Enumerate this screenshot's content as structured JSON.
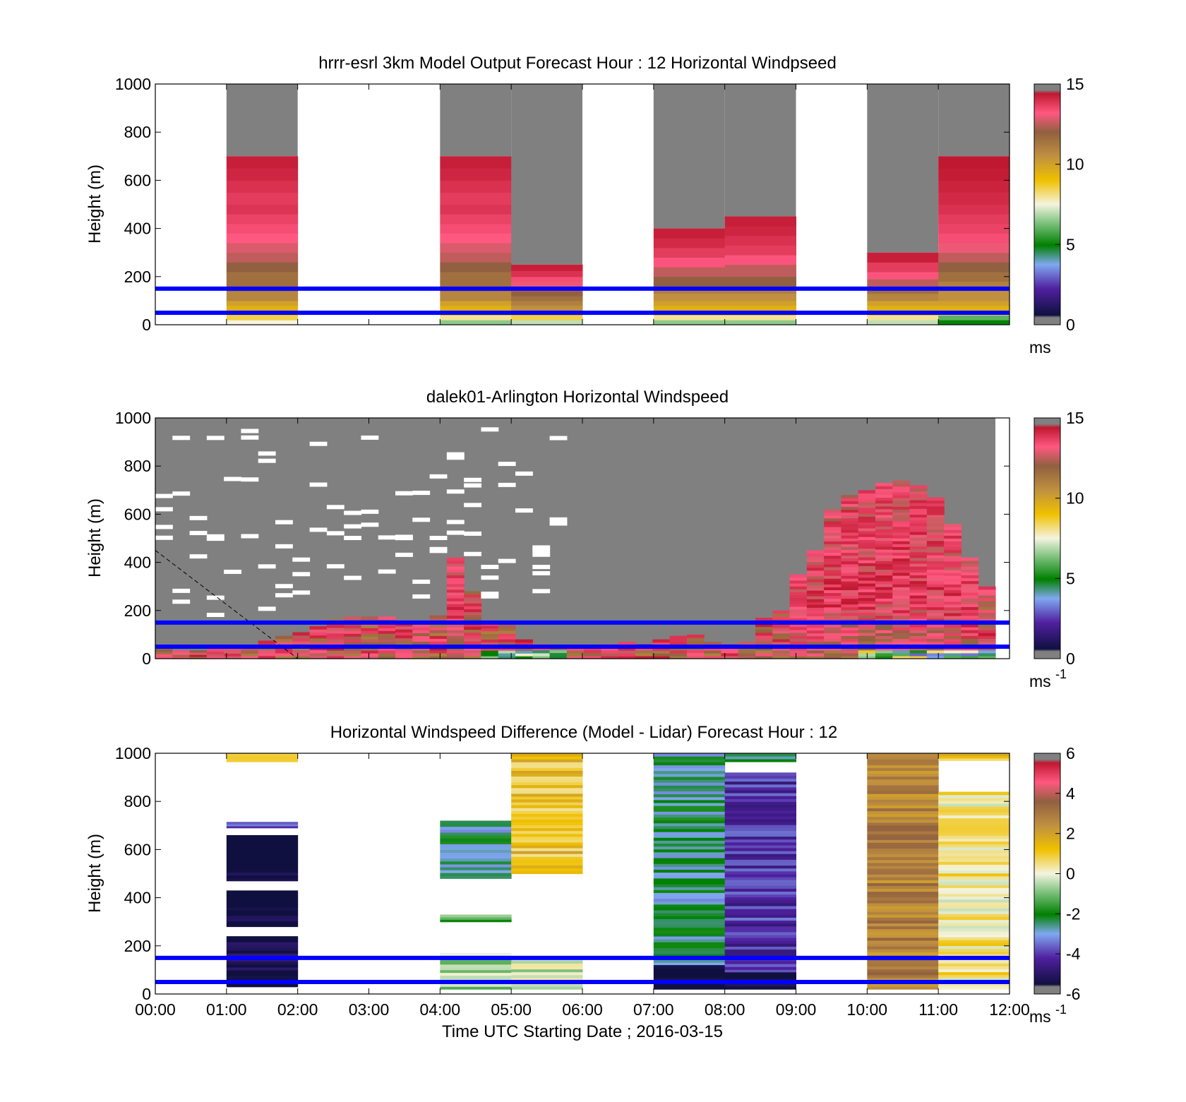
{
  "figure": {
    "xlabel": "Time UTC  Starting Date ; 2016-03-15"
  },
  "chart_data": [
    {
      "type": "heatmap",
      "title": "hrrr-esrl 3km Model Output   Forecast Hour : 12 Horizontal Windpseed",
      "ylabel": "Height (m)",
      "xlim": [
        "00:00",
        "12:00"
      ],
      "ylim": [
        0,
        1000
      ],
      "yticks": [
        0,
        200,
        400,
        600,
        800,
        1000
      ],
      "x_ticks_labeled": false,
      "colorbar": {
        "min": 0,
        "max": 15,
        "ticks": [
          0,
          5,
          10,
          15
        ],
        "unit_label": "ms",
        "unit_exponent": ""
      },
      "reference_lines_m": [
        50,
        150
      ],
      "columns": [
        {
          "t0": 1,
          "t1": 2,
          "top": 700,
          "values": [
            [
              0,
              20,
              7.5
            ],
            [
              20,
              40,
              8.5
            ],
            [
              40,
              60,
              9
            ],
            [
              60,
              80,
              9.5
            ],
            [
              80,
              100,
              10
            ],
            [
              100,
              140,
              10.8
            ],
            [
              140,
              180,
              11.5
            ],
            [
              180,
              220,
              11.5
            ],
            [
              220,
              260,
              12
            ],
            [
              260,
              300,
              12.5
            ],
            [
              300,
              340,
              12.8
            ],
            [
              340,
              380,
              13.2
            ],
            [
              380,
              420,
              13.5
            ],
            [
              420,
              460,
              13.8
            ],
            [
              460,
              500,
              14.2
            ],
            [
              500,
              550,
              14
            ],
            [
              550,
              600,
              14.3
            ],
            [
              600,
              650,
              14.6
            ],
            [
              650,
              700,
              14.8
            ]
          ]
        },
        {
          "t0": 4,
          "t1": 5,
          "top": 700,
          "values": [
            [
              0,
              20,
              6.5
            ],
            [
              20,
              40,
              8
            ],
            [
              40,
              60,
              9
            ],
            [
              60,
              80,
              9.5
            ],
            [
              80,
              100,
              10
            ],
            [
              100,
              140,
              10.8
            ],
            [
              140,
              180,
              11.5
            ],
            [
              180,
              220,
              11.5
            ],
            [
              220,
              260,
              12
            ],
            [
              260,
              300,
              12.5
            ],
            [
              300,
              340,
              12.8
            ],
            [
              340,
              380,
              13.2
            ],
            [
              380,
              420,
              13.5
            ],
            [
              420,
              460,
              13.8
            ],
            [
              460,
              500,
              14.2
            ],
            [
              500,
              550,
              14
            ],
            [
              550,
              600,
              14.3
            ],
            [
              600,
              650,
              14.6
            ],
            [
              650,
              700,
              14.8
            ]
          ]
        },
        {
          "t0": 5,
          "t1": 6,
          "top": 250,
          "values": [
            [
              0,
              20,
              7
            ],
            [
              20,
              40,
              8.5
            ],
            [
              40,
              60,
              9.5
            ],
            [
              60,
              80,
              10.5
            ],
            [
              80,
              100,
              11
            ],
            [
              100,
              120,
              11.5
            ],
            [
              120,
              140,
              12
            ],
            [
              140,
              160,
              12.5
            ],
            [
              160,
              180,
              13
            ],
            [
              180,
              200,
              13.5
            ],
            [
              200,
              225,
              14.3
            ],
            [
              225,
              250,
              14.8
            ]
          ]
        },
        {
          "t0": 7,
          "t1": 8,
          "top": 400,
          "values": [
            [
              0,
              20,
              6.5
            ],
            [
              20,
              40,
              8
            ],
            [
              40,
              60,
              9
            ],
            [
              60,
              80,
              9.5
            ],
            [
              80,
              100,
              10
            ],
            [
              100,
              130,
              10.5
            ],
            [
              130,
              160,
              11
            ],
            [
              160,
              200,
              12
            ],
            [
              200,
              240,
              12.5
            ],
            [
              240,
              280,
              13.3
            ],
            [
              280,
              320,
              14
            ],
            [
              320,
              360,
              14.5
            ],
            [
              360,
              400,
              14.8
            ]
          ]
        },
        {
          "t0": 8,
          "t1": 9,
          "top": 450,
          "values": [
            [
              0,
              20,
              6.5
            ],
            [
              20,
              40,
              8
            ],
            [
              40,
              60,
              9
            ],
            [
              60,
              80,
              9.5
            ],
            [
              80,
              100,
              10
            ],
            [
              100,
              130,
              10.5
            ],
            [
              130,
              160,
              11
            ],
            [
              160,
              200,
              12
            ],
            [
              200,
              250,
              12.5
            ],
            [
              250,
              290,
              13.3
            ],
            [
              290,
              330,
              14
            ],
            [
              330,
              370,
              14.3
            ],
            [
              370,
              410,
              14.6
            ],
            [
              410,
              450,
              14.8
            ]
          ]
        },
        {
          "t0": 10,
          "t1": 11,
          "top": 300,
          "values": [
            [
              0,
              20,
              7
            ],
            [
              20,
              40,
              8
            ],
            [
              40,
              60,
              9
            ],
            [
              60,
              80,
              9.5
            ],
            [
              80,
              100,
              10
            ],
            [
              100,
              130,
              10.8
            ],
            [
              130,
              160,
              11.5
            ],
            [
              160,
              190,
              12.5
            ],
            [
              190,
              220,
              13.3
            ],
            [
              220,
              260,
              14
            ],
            [
              260,
              300,
              14.8
            ]
          ]
        },
        {
          "t0": 11,
          "t1": 12,
          "top": 700,
          "values": [
            [
              0,
              20,
              5
            ],
            [
              20,
              40,
              6
            ],
            [
              40,
              60,
              8.5
            ],
            [
              60,
              80,
              9.5
            ],
            [
              80,
              100,
              10
            ],
            [
              100,
              140,
              10.5
            ],
            [
              140,
              180,
              11
            ],
            [
              180,
              220,
              11.5
            ],
            [
              220,
              260,
              12
            ],
            [
              260,
              300,
              12.5
            ],
            [
              300,
              340,
              13
            ],
            [
              340,
              380,
              13.5
            ],
            [
              380,
              420,
              13.8
            ],
            [
              420,
              460,
              14
            ],
            [
              460,
              500,
              14.3
            ],
            [
              500,
              550,
              14.5
            ],
            [
              550,
              600,
              14.7
            ],
            [
              600,
              650,
              14.9
            ],
            [
              650,
              700,
              15
            ]
          ]
        }
      ]
    },
    {
      "type": "heatmap",
      "title": "dalek01-Arlington  Horizontal Windspeed",
      "ylabel": "Height (m)",
      "xlim": [
        "00:00",
        "12:00"
      ],
      "ylim": [
        0,
        1000
      ],
      "yticks": [
        0,
        200,
        400,
        600,
        800,
        1000
      ],
      "x_ticks_labeled": false,
      "colorbar": {
        "min": 0,
        "max": 15,
        "ticks": [
          0,
          5,
          10,
          15
        ],
        "unit_label": "ms",
        "unit_exponent": "-1"
      },
      "reference_lines_m": [
        50,
        150
      ],
      "range_gate_hours": [
        0.0,
        0.25,
        0.5,
        0.75,
        1.0,
        1.25,
        1.5,
        1.75,
        2.0,
        2.25,
        2.5,
        2.75,
        3.0,
        3.25,
        3.5,
        3.75,
        4.0,
        4.25,
        4.5,
        4.75,
        5.0,
        5.25,
        5.5,
        5.75,
        6.0,
        6.25,
        6.5,
        6.75,
        7.0,
        7.25,
        7.5,
        7.75,
        8.0,
        8.25,
        8.5,
        8.75,
        9.0,
        9.25,
        9.5,
        9.75,
        10.0,
        10.25,
        10.5,
        10.75,
        11.0,
        11.25,
        11.5,
        11.75
      ],
      "data_top_m": [
        0,
        0,
        0,
        0,
        0,
        0,
        0,
        0,
        0,
        0,
        0,
        0,
        0,
        0,
        0,
        0,
        0,
        0,
        0,
        0,
        0,
        0,
        0,
        0,
        0,
        0,
        0,
        0,
        0,
        0,
        0,
        0,
        0,
        0,
        0,
        0,
        0,
        0,
        0,
        0,
        0,
        0,
        0,
        0,
        0,
        0,
        0,
        0
      ],
      "signal_top_m": [
        40,
        35,
        35,
        40,
        45,
        55,
        75,
        95,
        110,
        135,
        165,
        175,
        175,
        175,
        160,
        155,
        180,
        420,
        280,
        150,
        140,
        80,
        60,
        50,
        45,
        50,
        60,
        70,
        60,
        80,
        95,
        100,
        70,
        60,
        70,
        170,
        200,
        350,
        450,
        620,
        680,
        700,
        730,
        740,
        720,
        670,
        560,
        420,
        300
      ],
      "low_level_speed_range": [
        8,
        15
      ],
      "mid_level_speed_range": [
        10,
        15
      ],
      "dashed_guide_line": {
        "from": [
          "00:00",
          450
        ],
        "to": [
          "02:00",
          0
        ]
      }
    },
    {
      "type": "heatmap",
      "title": "Horizontal Windspeed Difference (Model - Lidar) Forecast Hour : 12",
      "ylabel": "Height (m)",
      "xlim": [
        "00:00",
        "12:00"
      ],
      "ylim": [
        0,
        1000
      ],
      "yticks": [
        0,
        200,
        400,
        600,
        800,
        1000
      ],
      "xticks": [
        "00:00",
        "01:00",
        "02:00",
        "03:00",
        "04:00",
        "05:00",
        "06:00",
        "07:00",
        "08:00",
        "09:00",
        "10:00",
        "11:00",
        "12:00"
      ],
      "colorbar": {
        "min": -6,
        "max": 6,
        "ticks": [
          -6,
          -4,
          -2,
          0,
          2,
          4,
          6
        ],
        "unit_label": "ms",
        "unit_exponent": "-1"
      },
      "reference_lines_m": [
        50,
        150
      ],
      "blocks": [
        {
          "t0": 1,
          "t1": 2,
          "h0": 965,
          "h1": 1000,
          "v": 1.5
        },
        {
          "t0": 1,
          "t1": 2,
          "h0": 690,
          "h1": 715,
          "v": -4
        },
        {
          "t0": 1,
          "t1": 2,
          "h0": 470,
          "h1": 660,
          "v": -6.2
        },
        {
          "t0": 1,
          "t1": 2,
          "h0": 280,
          "h1": 430,
          "v": -6.2
        },
        {
          "t0": 1,
          "t1": 2,
          "h0": 30,
          "h1": 240,
          "v": -5.8
        },
        {
          "t0": 4,
          "t1": 5,
          "h0": 480,
          "h1": 720,
          "v": -2.5
        },
        {
          "t0": 4,
          "t1": 5,
          "h0": 300,
          "h1": 330,
          "v": -1.2
        },
        {
          "t0": 4,
          "t1": 5,
          "h0": 20,
          "h1": 170,
          "v": -0.6
        },
        {
          "t0": 5,
          "t1": 6,
          "h0": 500,
          "h1": 1000,
          "v": 1.2
        },
        {
          "t0": 5,
          "t1": 6,
          "h0": 20,
          "h1": 140,
          "v": -0.4
        },
        {
          "t0": 7,
          "t1": 8,
          "h0": 120,
          "h1": 1000,
          "v": -2.5
        },
        {
          "t0": 7,
          "t1": 8,
          "h0": 20,
          "h1": 120,
          "v": -6.2
        },
        {
          "t0": 8,
          "t1": 9,
          "h0": 90,
          "h1": 920,
          "v": -4.2
        },
        {
          "t0": 8,
          "t1": 9,
          "h0": 965,
          "h1": 1000,
          "v": -2.8
        },
        {
          "t0": 8,
          "t1": 9,
          "h0": 20,
          "h1": 90,
          "v": -6.2
        },
        {
          "t0": 10,
          "t1": 11,
          "h0": 20,
          "h1": 1000,
          "v": 2.8
        },
        {
          "t0": 11,
          "t1": 12,
          "h0": 20,
          "h1": 840,
          "v": 0.4
        },
        {
          "t0": 11,
          "t1": 12,
          "h0": 970,
          "h1": 1000,
          "v": 1.3
        }
      ]
    }
  ]
}
